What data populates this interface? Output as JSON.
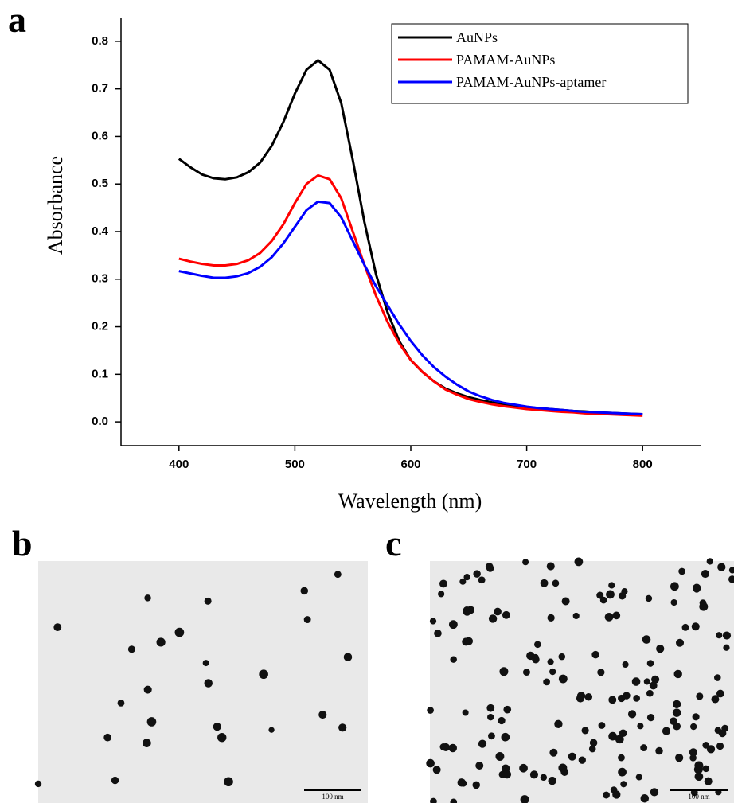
{
  "chart_data": {
    "type": "line",
    "panel_label": "a",
    "xlabel": "Wavelength (nm)",
    "ylabel": "Absorbance",
    "x": [
      400,
      410,
      420,
      430,
      440,
      450,
      460,
      470,
      480,
      490,
      500,
      510,
      520,
      530,
      540,
      550,
      560,
      570,
      580,
      590,
      600,
      610,
      620,
      630,
      640,
      650,
      660,
      670,
      680,
      690,
      700,
      710,
      720,
      730,
      740,
      750,
      760,
      770,
      780,
      790,
      800
    ],
    "series": [
      {
        "name": "AuNPs",
        "color": "#000000",
        "values": [
          0.553,
          0.535,
          0.52,
          0.512,
          0.51,
          0.514,
          0.525,
          0.545,
          0.58,
          0.63,
          0.69,
          0.74,
          0.76,
          0.74,
          0.67,
          0.55,
          0.42,
          0.31,
          0.23,
          0.17,
          0.13,
          0.105,
          0.085,
          0.07,
          0.06,
          0.052,
          0.046,
          0.041,
          0.037,
          0.034,
          0.031,
          0.029,
          0.027,
          0.025,
          0.023,
          0.022,
          0.02,
          0.019,
          0.018,
          0.017,
          0.016
        ]
      },
      {
        "name": "PAMAM-AuNPs",
        "color": "#ff0000",
        "values": [
          0.343,
          0.337,
          0.332,
          0.329,
          0.329,
          0.332,
          0.34,
          0.355,
          0.38,
          0.415,
          0.46,
          0.5,
          0.518,
          0.51,
          0.47,
          0.4,
          0.33,
          0.265,
          0.21,
          0.165,
          0.13,
          0.105,
          0.085,
          0.068,
          0.057,
          0.048,
          0.042,
          0.037,
          0.033,
          0.03,
          0.027,
          0.025,
          0.023,
          0.021,
          0.02,
          0.018,
          0.017,
          0.016,
          0.015,
          0.014,
          0.013
        ]
      },
      {
        "name": "PAMAM-AuNPs-aptamer",
        "color": "#0000ff",
        "values": [
          0.317,
          0.312,
          0.307,
          0.303,
          0.303,
          0.306,
          0.313,
          0.326,
          0.346,
          0.375,
          0.41,
          0.445,
          0.463,
          0.46,
          0.43,
          0.38,
          0.33,
          0.285,
          0.245,
          0.205,
          0.17,
          0.14,
          0.115,
          0.095,
          0.078,
          0.064,
          0.054,
          0.046,
          0.04,
          0.036,
          0.032,
          0.029,
          0.027,
          0.025,
          0.023,
          0.021,
          0.02,
          0.019,
          0.018,
          0.017,
          0.016
        ]
      }
    ],
    "xlim": [
      350,
      850
    ],
    "ylim": [
      -0.05,
      0.85
    ],
    "xticks": [
      400,
      500,
      600,
      700,
      800
    ],
    "yticks": [
      {
        "value": 0,
        "label": "0.0"
      },
      0.1,
      0.2,
      0.3,
      0.4,
      0.5,
      0.6,
      0.7,
      0.8
    ],
    "legend": "upper right"
  },
  "panels": [
    {
      "label": "b",
      "scale_bar": "100 nm"
    },
    {
      "label": "c",
      "scale_bar": "100 nm"
    }
  ]
}
